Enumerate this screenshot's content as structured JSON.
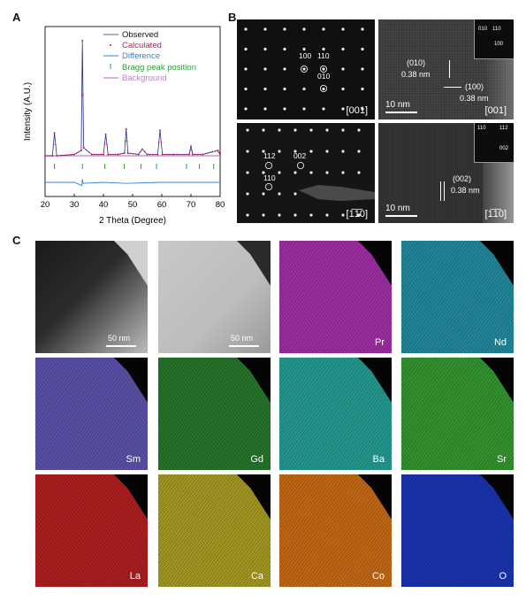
{
  "panels": {
    "a": "A",
    "b": "B",
    "c": "C"
  },
  "xrd": {
    "xlabel": "2 Theta (Degree)",
    "ylabel": "Intensity (A.U.)",
    "xticks": [
      "20",
      "30",
      "40",
      "50",
      "60",
      "70",
      "80"
    ],
    "legend": [
      "Observed",
      "Calculated",
      "Difference",
      "Bragg peak position",
      "Background"
    ],
    "colors": {
      "observed": "#2a2a8a",
      "calculated": "#c2185b",
      "difference": "#3a7fd5",
      "bragg": "#2e9e3e",
      "background": "#c080c8"
    }
  },
  "chart_data": {
    "type": "line",
    "xlabel": "2 Theta (Degree)",
    "ylabel": "Intensity (A.U.)",
    "xlim": [
      20,
      80
    ],
    "series": [
      {
        "name": "Observed",
        "x": [
          20,
          22.5,
          23.2,
          24,
          30,
          32.4,
          32.8,
          33.2,
          36,
          40,
          40.8,
          41.6,
          45,
          47.2,
          47.8,
          48.4,
          52,
          53.3,
          55,
          58.6,
          59.4,
          60.2,
          64,
          69.4,
          70,
          70.6,
          74,
          79.2,
          80
        ],
        "y": [
          14,
          14,
          31,
          14,
          15,
          18,
          100,
          20,
          15,
          15,
          30,
          15,
          15,
          16,
          34,
          16,
          15,
          19,
          15,
          15,
          33,
          15,
          15,
          15,
          21,
          15,
          15,
          18,
          15
        ]
      },
      {
        "name": "Calculated",
        "x": [
          20,
          22.5,
          23.2,
          24,
          30,
          32.4,
          32.8,
          33.2,
          36,
          40,
          40.8,
          41.6,
          45,
          47.2,
          47.8,
          48.4,
          52,
          53.3,
          55,
          58.6,
          59.4,
          60.2,
          64,
          69.4,
          70,
          70.6,
          74,
          79.2,
          80
        ],
        "y": [
          14,
          14,
          31,
          14,
          15,
          18,
          100,
          20,
          15,
          15,
          30,
          15,
          15,
          16,
          34,
          16,
          15,
          19,
          15,
          15,
          33,
          15,
          15,
          15,
          21,
          15,
          15,
          18,
          15
        ]
      },
      {
        "name": "Background",
        "x": [
          20,
          80
        ],
        "y": [
          14,
          14
        ]
      },
      {
        "name": "Difference",
        "x": [
          20,
          30,
          32.6,
          32.8,
          33,
          40,
          47.8,
          59.4,
          70,
          80
        ],
        "y": [
          -10,
          -10,
          -13,
          -7,
          -11,
          -10,
          -11,
          -10,
          -10,
          -10
        ]
      }
    ],
    "bragg_positions": [
      23.2,
      32.8,
      40.5,
      47.1,
      52.9,
      58.2,
      68.5,
      72.9,
      77.8
    ]
  },
  "saed": {
    "top": {
      "labels": [
        "100",
        "110",
        "010"
      ],
      "zone": "[001]"
    },
    "bottom": {
      "labels": [
        "112",
        "002",
        "110"
      ],
      "zone": "[1̅1̅0]"
    }
  },
  "hrtem": {
    "top": {
      "scale": "10 nm",
      "zone": "[001]",
      "d1_plane": "(010)",
      "d1_val": "0.38 nm",
      "d2_plane": "(100)",
      "d2_val": "0.38 nm",
      "inset": [
        "010",
        "110",
        "100"
      ]
    },
    "bottom": {
      "scale": "10 nm",
      "zone": "[1̅1̅0]",
      "plane": "(002)",
      "val": "0.38 nm",
      "inset": [
        "110",
        "112",
        "002"
      ]
    }
  },
  "eds": {
    "scale": "50 nm",
    "elements": [
      "Pr",
      "Nd",
      "Sm",
      "Gd",
      "Ba",
      "Sr",
      "La",
      "Ca",
      "Co",
      "O"
    ],
    "colors": [
      "#c238c8",
      "#2aa6bf",
      "#6e63cf",
      "#2f8f35",
      "#2bbcb0",
      "#3fb53a",
      "#d52525",
      "#c9bb2a",
      "#f0801a",
      "#1f3fd8"
    ]
  }
}
